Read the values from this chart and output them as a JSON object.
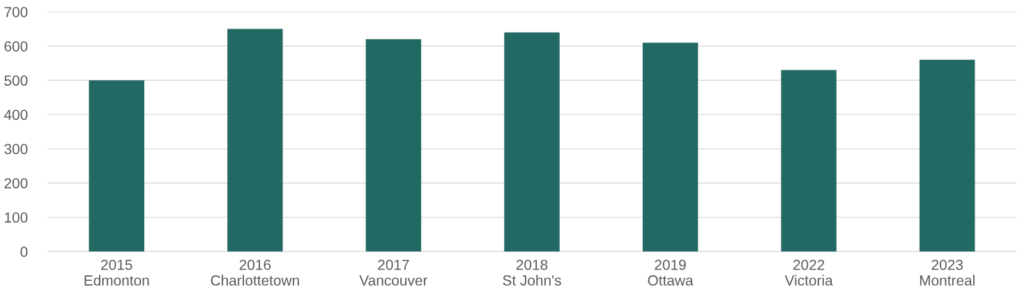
{
  "chart_data": {
    "type": "bar",
    "categories": [
      "2015\nEdmonton",
      "2016\nCharlottetown",
      "2017\nVancouver",
      "2018\nSt John's",
      "2019\nOttawa",
      "2022\nVictoria",
      "2023\nMontreal"
    ],
    "values": [
      500,
      650,
      620,
      640,
      610,
      530,
      560
    ],
    "color": "#236963",
    "ylim": [
      0,
      700
    ],
    "yticks": [
      0,
      100,
      200,
      300,
      400,
      500,
      600,
      700
    ],
    "grid": "y",
    "legend": false
  }
}
